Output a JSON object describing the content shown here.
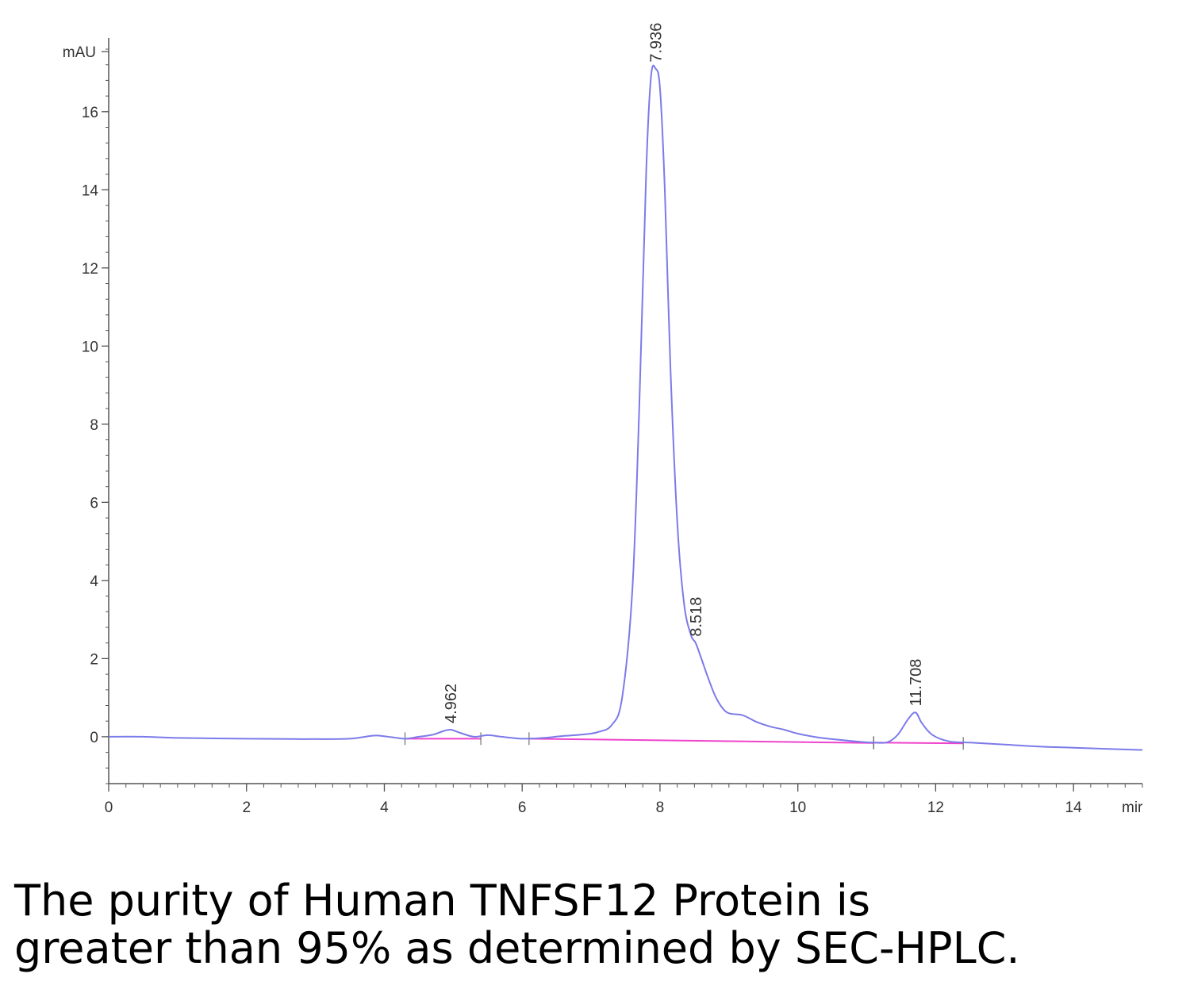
{
  "chart_data": {
    "type": "line",
    "ylabel": "mAU",
    "xlabel": "mir",
    "xlim": [
      0,
      15
    ],
    "ylim": [
      -1.2,
      17.6
    ],
    "x_ticks": [
      "0",
      "2",
      "4",
      "6",
      "8",
      "10",
      "12",
      "14"
    ],
    "y_ticks": [
      "0",
      "2",
      "4",
      "6",
      "8",
      "10",
      "12",
      "14",
      "16"
    ],
    "grid": false,
    "colors": {
      "trace": "#7b7bea",
      "baseline": "#ee44cc",
      "axis": "#555555"
    },
    "peaks": [
      {
        "label": "4.962",
        "x": 4.962,
        "y": 0.18
      },
      {
        "label": "7.936",
        "x": 7.936,
        "y": 17.1
      },
      {
        "label": "8.518",
        "x": 8.518,
        "y": 2.4
      },
      {
        "label": "11.708",
        "x": 11.708,
        "y": 0.62
      }
    ],
    "series": [
      {
        "x": [
          0,
          0.5,
          1,
          2,
          2.7,
          3,
          3.5,
          3.8,
          3.9,
          4.1,
          4.3,
          4.5,
          4.7,
          4.85,
          4.962,
          5.1,
          5.3,
          5.5,
          5.7,
          6,
          6.3,
          6.6,
          6.9,
          7.1,
          7.3,
          7.45,
          7.6,
          7.7,
          7.8,
          7.87,
          7.936,
          8.0,
          8.07,
          8.15,
          8.25,
          8.35,
          8.45,
          8.518,
          8.6,
          8.7,
          8.8,
          8.9,
          9.0,
          9.2,
          9.4,
          9.6,
          9.8,
          10,
          10.3,
          10.6,
          10.9,
          11.1,
          11.3,
          11.45,
          11.6,
          11.708,
          11.8,
          11.95,
          12.2,
          12.5,
          13,
          13.5,
          14,
          14.5,
          15
        ],
        "y": [
          0,
          0,
          -0.03,
          -0.05,
          -0.06,
          -0.06,
          -0.05,
          0.02,
          0.03,
          -0.01,
          -0.05,
          0.0,
          0.05,
          0.14,
          0.18,
          0.1,
          0.0,
          0.04,
          0.0,
          -0.05,
          -0.03,
          0.02,
          0.06,
          0.12,
          0.3,
          1.0,
          3.8,
          8.5,
          14.5,
          16.9,
          17.1,
          16.6,
          14.0,
          9.5,
          5.5,
          3.4,
          2.6,
          2.4,
          2.0,
          1.5,
          1.05,
          0.75,
          0.6,
          0.55,
          0.38,
          0.26,
          0.18,
          0.08,
          -0.02,
          -0.08,
          -0.13,
          -0.15,
          -0.14,
          0.05,
          0.45,
          0.62,
          0.35,
          0.05,
          -0.12,
          -0.15,
          -0.2,
          -0.25,
          -0.28,
          -0.31,
          -0.34
        ]
      }
    ],
    "baselines": [
      {
        "x": [
          4.3,
          5.4
        ],
        "y": [
          -0.05,
          -0.05
        ]
      },
      {
        "x": [
          6.1,
          11.1
        ],
        "y": [
          -0.05,
          -0.16
        ]
      },
      {
        "x": [
          11.1,
          12.4
        ],
        "y": [
          -0.15,
          -0.17
        ]
      }
    ]
  },
  "caption": {
    "line1": "The purity of Human TNFSF12 Protein is",
    "line2": "greater than 95% as determined by SEC-HPLC."
  }
}
